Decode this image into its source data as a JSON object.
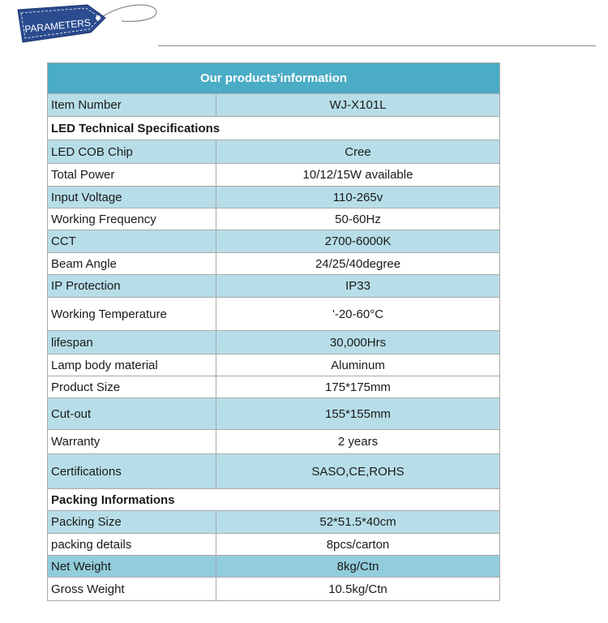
{
  "badge": {
    "label": "PARAMETERS"
  },
  "table": {
    "title": "Our products'information",
    "rows": [
      {
        "label": "Item Number",
        "value": "WJ-X101L"
      },
      {
        "section": "LED Technical Specifications"
      },
      {
        "label": "LED COB Chip",
        "value": "Cree"
      },
      {
        "label": "Total Power",
        "value": "10/12/15W  available"
      },
      {
        "label": "Input Voltage",
        "value": "110-265v"
      },
      {
        "label": "Working Frequency",
        "value": "50-60Hz"
      },
      {
        "label": "CCT",
        "value": "2700-6000K"
      },
      {
        "label": "Beam Angle",
        "value": "24/25/40degree"
      },
      {
        "label": "IP Protection",
        "value": "IP33"
      },
      {
        "label": "Working Temperature",
        "value": "'-20-60°C"
      },
      {
        "label": "lifespan",
        "value": "30,000Hrs"
      },
      {
        "label": "Lamp body material",
        "value": "Aluminum"
      },
      {
        "label": "Product Size",
        "value": "175*175mm"
      },
      {
        "label": "Cut-out",
        "value": "155*155mm"
      },
      {
        "label": "Warranty",
        "value": "2 years"
      },
      {
        "label": "Certifications",
        "value": "SASO,CE,ROHS"
      },
      {
        "section": "Packing Informations"
      },
      {
        "label": "Packing Size",
        "value": "52*51.5*40cm"
      },
      {
        "label": "packing details",
        "value": "8pcs/carton"
      },
      {
        "label": "Net Weight",
        "value": "8kg/Ctn"
      },
      {
        "label": "Gross Weight",
        "value": "10.5kg/Ctn"
      }
    ]
  }
}
